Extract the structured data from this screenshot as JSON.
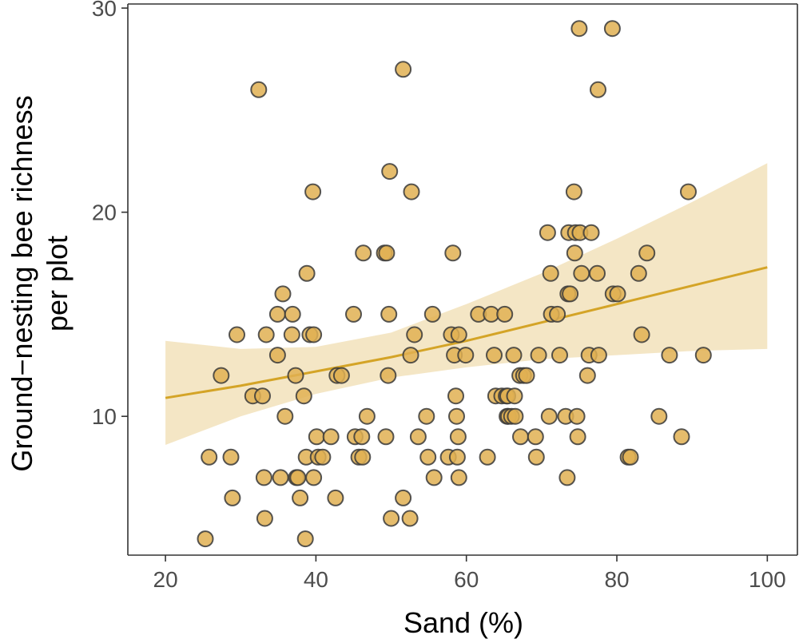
{
  "chart_data": {
    "type": "scatter",
    "title": "",
    "xlabel": "Sand (%)",
    "ylabel_line1": "Ground−nesting bee richness",
    "ylabel_line2": "per plot",
    "xlim": [
      15,
      104
    ],
    "ylim": [
      3.2,
      30.2
    ],
    "xticks": [
      20,
      40,
      60,
      80,
      100
    ],
    "yticks": [
      10,
      20,
      30
    ],
    "grid": false,
    "colors": {
      "point_fill": "#e0b052",
      "point_stroke": "#3a3a3a",
      "line": "#d4a427",
      "ribbon": "#f2e2bb",
      "axis": "#333333"
    },
    "trend": {
      "x": [
        20,
        30,
        40,
        50,
        60,
        70,
        80,
        90,
        100
      ],
      "y": [
        10.9,
        11.5,
        12.2,
        12.9,
        13.7,
        14.6,
        15.5,
        16.4,
        17.3
      ],
      "lower": [
        8.6,
        10.0,
        11.1,
        11.9,
        12.4,
        12.8,
        13.0,
        13.2,
        13.3
      ],
      "upper": [
        13.7,
        13.3,
        13.4,
        14.1,
        15.5,
        17.0,
        18.7,
        20.5,
        22.4
      ]
    },
    "points": [
      [
        25.3,
        4
      ],
      [
        25.8,
        8
      ],
      [
        27.4,
        12
      ],
      [
        28.7,
        8
      ],
      [
        28.9,
        6
      ],
      [
        29.5,
        14
      ],
      [
        31.6,
        11
      ],
      [
        32.4,
        26
      ],
      [
        32.9,
        11
      ],
      [
        33.1,
        7
      ],
      [
        33.2,
        5
      ],
      [
        33.4,
        14
      ],
      [
        34.9,
        13
      ],
      [
        34.9,
        15
      ],
      [
        35.3,
        7
      ],
      [
        35.6,
        16
      ],
      [
        35.9,
        10
      ],
      [
        36.8,
        14
      ],
      [
        36.9,
        15
      ],
      [
        37.3,
        12
      ],
      [
        37.4,
        7
      ],
      [
        37.6,
        7
      ],
      [
        37.9,
        6
      ],
      [
        38.4,
        11
      ],
      [
        38.6,
        4
      ],
      [
        38.7,
        8
      ],
      [
        38.8,
        17
      ],
      [
        39.2,
        14
      ],
      [
        39.6,
        21
      ],
      [
        39.7,
        7
      ],
      [
        39.7,
        14
      ],
      [
        40.1,
        9
      ],
      [
        40.3,
        8
      ],
      [
        40.9,
        8
      ],
      [
        42.0,
        9
      ],
      [
        42.6,
        6
      ],
      [
        42.8,
        12
      ],
      [
        43.4,
        12
      ],
      [
        45.0,
        15
      ],
      [
        45.2,
        9
      ],
      [
        45.7,
        8
      ],
      [
        46.1,
        9
      ],
      [
        46.2,
        8
      ],
      [
        46.3,
        18
      ],
      [
        46.8,
        10
      ],
      [
        49.1,
        18
      ],
      [
        49.3,
        9
      ],
      [
        49.4,
        18
      ],
      [
        49.6,
        12
      ],
      [
        49.7,
        15
      ],
      [
        49.8,
        22
      ],
      [
        50.0,
        5
      ],
      [
        51.6,
        6
      ],
      [
        51.6,
        27
      ],
      [
        52.5,
        5
      ],
      [
        52.6,
        13
      ],
      [
        52.7,
        21
      ],
      [
        53.1,
        14
      ],
      [
        53.6,
        9
      ],
      [
        54.7,
        10
      ],
      [
        54.9,
        8
      ],
      [
        55.5,
        15
      ],
      [
        55.7,
        7
      ],
      [
        57.6,
        8
      ],
      [
        58.0,
        14
      ],
      [
        58.2,
        18
      ],
      [
        58.4,
        13
      ],
      [
        58.6,
        11
      ],
      [
        58.7,
        10
      ],
      [
        58.8,
        8
      ],
      [
        58.9,
        9
      ],
      [
        59.0,
        7
      ],
      [
        59.0,
        14
      ],
      [
        59.9,
        13
      ],
      [
        61.6,
        15
      ],
      [
        62.8,
        8
      ],
      [
        63.3,
        15
      ],
      [
        63.7,
        13
      ],
      [
        63.9,
        11
      ],
      [
        64.7,
        11
      ],
      [
        65.1,
        15
      ],
      [
        65.3,
        11
      ],
      [
        65.4,
        10
      ],
      [
        65.5,
        11
      ],
      [
        65.6,
        10
      ],
      [
        66.0,
        10
      ],
      [
        66.3,
        13
      ],
      [
        66.4,
        11
      ],
      [
        66.5,
        10
      ],
      [
        67.1,
        12
      ],
      [
        67.2,
        9
      ],
      [
        67.6,
        12
      ],
      [
        68.0,
        12
      ],
      [
        69.2,
        9
      ],
      [
        69.3,
        8
      ],
      [
        69.6,
        13
      ],
      [
        70.8,
        19
      ],
      [
        71.0,
        10
      ],
      [
        71.2,
        17
      ],
      [
        71.3,
        15
      ],
      [
        72.1,
        15
      ],
      [
        72.4,
        13
      ],
      [
        73.2,
        10
      ],
      [
        73.4,
        7
      ],
      [
        73.5,
        16
      ],
      [
        73.6,
        19
      ],
      [
        73.8,
        16
      ],
      [
        74.3,
        21
      ],
      [
        74.4,
        18
      ],
      [
        74.5,
        19
      ],
      [
        74.7,
        10
      ],
      [
        74.8,
        9
      ],
      [
        75.0,
        29
      ],
      [
        75.1,
        19
      ],
      [
        75.3,
        17
      ],
      [
        76.1,
        12
      ],
      [
        76.3,
        13
      ],
      [
        76.6,
        19
      ],
      [
        77.4,
        17
      ],
      [
        77.5,
        26
      ],
      [
        77.6,
        13
      ],
      [
        79.4,
        29
      ],
      [
        79.5,
        16
      ],
      [
        80.1,
        16
      ],
      [
        81.5,
        8
      ],
      [
        81.8,
        8
      ],
      [
        82.9,
        17
      ],
      [
        83.3,
        14
      ],
      [
        84.0,
        18
      ],
      [
        85.6,
        10
      ],
      [
        87.0,
        13
      ],
      [
        88.6,
        9
      ],
      [
        89.5,
        21
      ],
      [
        91.5,
        13
      ]
    ]
  }
}
